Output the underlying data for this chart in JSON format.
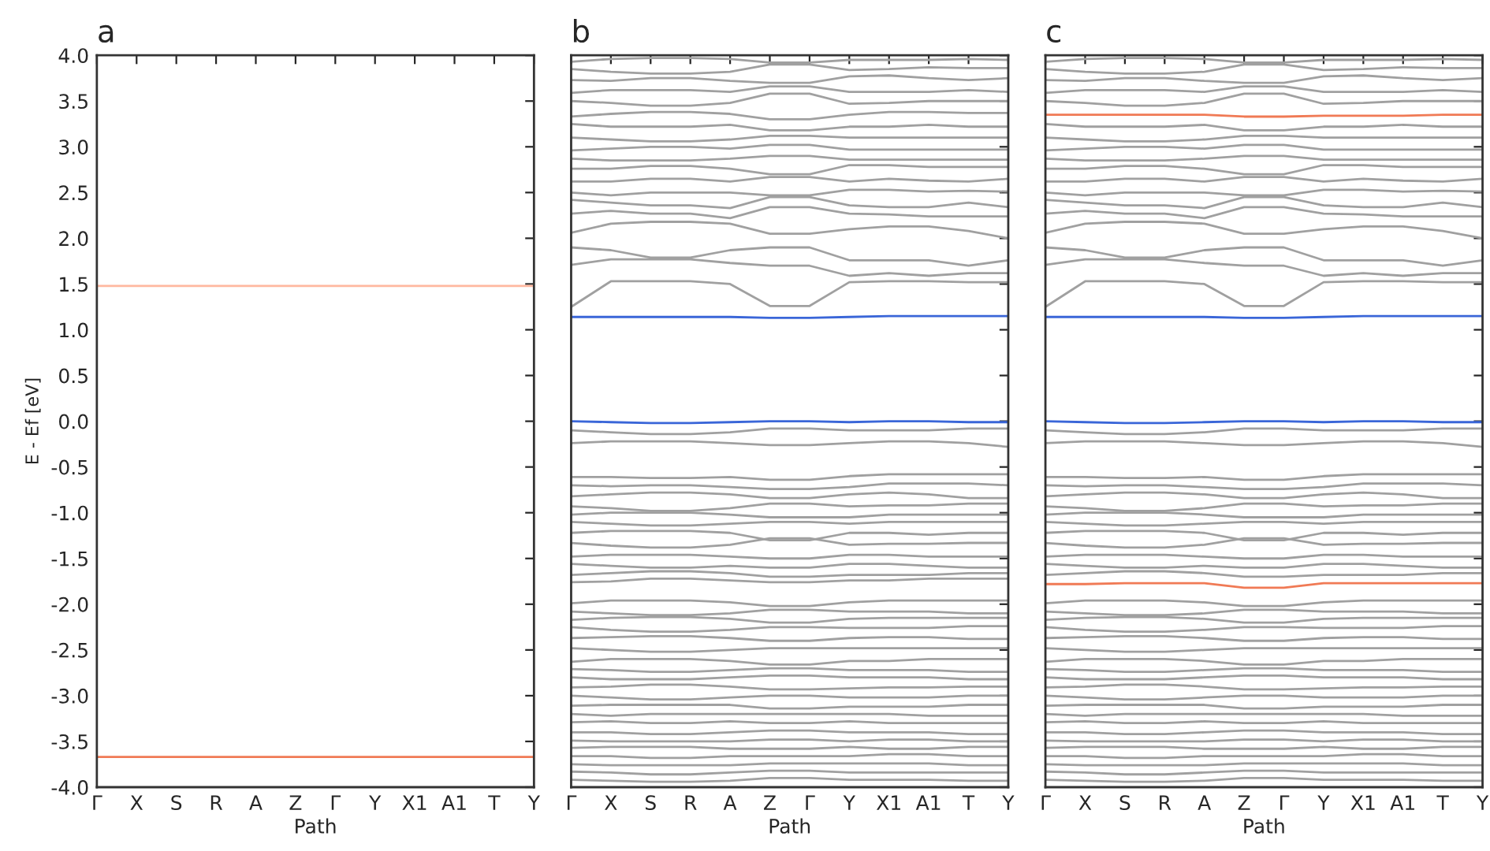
{
  "chart_data": [
    {
      "type": "line",
      "title": "a",
      "xlabel": "Path",
      "ylabel": "E - Ef [eV]",
      "categories": [
        "Γ",
        "X",
        "S",
        "R",
        "A",
        "Z",
        "Γ",
        "Y",
        "X1",
        "A1",
        "T",
        "Y"
      ],
      "ylim": [
        -4.0,
        4.0
      ],
      "yticks": [
        {
          "value": -4,
          "label": "-4.0"
        },
        -3.5,
        {
          "value": -3,
          "label": "-3.0"
        },
        -2.5,
        {
          "value": -2,
          "label": "-2.0"
        },
        -1.5,
        {
          "value": -1,
          "label": "-1.0"
        },
        -0.5,
        {
          "value": 0,
          "label": "0.0"
        },
        0.5,
        {
          "value": 1,
          "label": "1.0"
        },
        1.5,
        {
          "value": 2,
          "label": "2.0"
        },
        2.5,
        {
          "value": 3,
          "label": "3.0"
        },
        3.5,
        {
          "value": 4,
          "label": "4.0"
        }
      ],
      "grid": false,
      "marker": "none",
      "line_style": "solid",
      "series": [
        {
          "color": "#ffb8a0",
          "values": [
            1.48,
            1.48,
            1.48,
            1.48,
            1.48,
            1.48,
            1.48,
            1.48,
            1.48,
            1.48,
            1.48,
            1.48
          ]
        },
        {
          "color": "#f07a55",
          "values": [
            -3.67,
            -3.67,
            -3.67,
            -3.67,
            -3.67,
            -3.67,
            -3.67,
            -3.67,
            -3.67,
            -3.67,
            -3.67,
            -3.67
          ]
        }
      ]
    },
    {
      "type": "line",
      "title": "b",
      "xlabel": "Path",
      "categories": [
        "Γ",
        "X",
        "S",
        "R",
        "A",
        "Z",
        "Γ",
        "Y",
        "X1",
        "A1",
        "T",
        "Y"
      ],
      "ylim": [
        -4.0,
        4.0
      ],
      "yticks": [
        -4,
        -3.5,
        -3,
        -2.5,
        -2,
        -1.5,
        -1,
        -0.5,
        0,
        0.5,
        1,
        1.5,
        2,
        2.5,
        3,
        3.5,
        4
      ],
      "tick_labels": "x",
      "grid": false,
      "marker": "none",
      "line_style": "solid",
      "series": [
        {
          "color": "#a0a0a0",
          "values": [
            1.25,
            1.53,
            1.53,
            1.53,
            1.5,
            1.26,
            1.26,
            1.52,
            1.53,
            1.53,
            1.52,
            1.52
          ]
        },
        {
          "color": "#a0a0a0",
          "values": [
            1.71,
            1.77,
            1.77,
            1.77,
            1.73,
            1.7,
            1.7,
            1.59,
            1.62,
            1.59,
            1.62,
            1.62
          ]
        },
        {
          "color": "#a0a0a0",
          "values": [
            1.9,
            1.87,
            1.79,
            1.79,
            1.87,
            1.9,
            1.9,
            1.76,
            1.76,
            1.76,
            1.7,
            1.76
          ]
        },
        {
          "color": "#a0a0a0",
          "values": [
            2.06,
            2.16,
            2.18,
            2.18,
            2.16,
            2.05,
            2.05,
            2.1,
            2.13,
            2.13,
            2.08,
            2.0
          ]
        },
        {
          "color": "#a0a0a0",
          "values": [
            2.27,
            2.3,
            2.27,
            2.27,
            2.22,
            2.34,
            2.34,
            2.27,
            2.26,
            2.24,
            2.24,
            2.24
          ]
        },
        {
          "color": "#a0a0a0",
          "values": [
            2.42,
            2.39,
            2.36,
            2.36,
            2.33,
            2.45,
            2.45,
            2.36,
            2.34,
            2.34,
            2.39,
            2.34
          ]
        },
        {
          "color": "#a0a0a0",
          "values": [
            2.5,
            2.47,
            2.5,
            2.5,
            2.5,
            2.47,
            2.47,
            2.53,
            2.53,
            2.51,
            2.52,
            2.51
          ]
        },
        {
          "color": "#a0a0a0",
          "values": [
            2.62,
            2.62,
            2.65,
            2.65,
            2.62,
            2.67,
            2.67,
            2.62,
            2.65,
            2.63,
            2.62,
            2.65
          ]
        },
        {
          "color": "#a0a0a0",
          "values": [
            2.76,
            2.76,
            2.79,
            2.79,
            2.76,
            2.7,
            2.7,
            2.8,
            2.8,
            2.78,
            2.78,
            2.78
          ]
        },
        {
          "color": "#a0a0a0",
          "values": [
            2.87,
            2.85,
            2.85,
            2.85,
            2.87,
            2.9,
            2.9,
            2.86,
            2.86,
            2.86,
            2.86,
            2.86
          ]
        },
        {
          "color": "#a0a0a0",
          "values": [
            2.96,
            2.98,
            3.0,
            3.0,
            2.98,
            3.02,
            3.02,
            2.97,
            2.97,
            2.97,
            2.97,
            2.97
          ]
        },
        {
          "color": "#a0a0a0",
          "values": [
            3.1,
            3.08,
            3.06,
            3.06,
            3.08,
            3.12,
            3.12,
            3.1,
            3.1,
            3.1,
            3.1,
            3.1
          ]
        },
        {
          "color": "#a0a0a0",
          "values": [
            3.25,
            3.22,
            3.22,
            3.22,
            3.24,
            3.18,
            3.18,
            3.22,
            3.22,
            3.24,
            3.22,
            3.22
          ]
        },
        {
          "color": "#a0a0a0",
          "values": [
            3.33,
            3.36,
            3.38,
            3.38,
            3.36,
            3.3,
            3.3,
            3.35,
            3.38,
            3.38,
            3.37,
            3.37
          ]
        },
        {
          "color": "#a0a0a0",
          "values": [
            3.5,
            3.48,
            3.45,
            3.45,
            3.48,
            3.58,
            3.58,
            3.47,
            3.48,
            3.5,
            3.5,
            3.5
          ]
        },
        {
          "color": "#a0a0a0",
          "values": [
            3.59,
            3.62,
            3.62,
            3.62,
            3.6,
            3.66,
            3.66,
            3.6,
            3.6,
            3.6,
            3.62,
            3.6
          ]
        },
        {
          "color": "#a0a0a0",
          "values": [
            3.73,
            3.72,
            3.75,
            3.75,
            3.72,
            3.7,
            3.7,
            3.77,
            3.78,
            3.75,
            3.73,
            3.75
          ]
        },
        {
          "color": "#a0a0a0",
          "values": [
            3.85,
            3.82,
            3.8,
            3.8,
            3.82,
            3.9,
            3.9,
            3.84,
            3.85,
            3.87,
            3.86,
            3.86
          ]
        },
        {
          "color": "#a0a0a0",
          "values": [
            3.93,
            3.96,
            3.97,
            3.97,
            3.96,
            3.92,
            3.92,
            3.95,
            3.95,
            3.95,
            3.96,
            3.95
          ]
        },
        {
          "color": "#a0a0a0",
          "values": [
            -0.1,
            -0.12,
            -0.14,
            -0.14,
            -0.12,
            -0.08,
            -0.08,
            -0.1,
            -0.1,
            -0.1,
            -0.08,
            -0.08
          ]
        },
        {
          "color": "#a0a0a0",
          "values": [
            -0.24,
            -0.22,
            -0.22,
            -0.22,
            -0.24,
            -0.26,
            -0.26,
            -0.24,
            -0.22,
            -0.22,
            -0.24,
            -0.28
          ]
        },
        {
          "color": "#a0a0a0",
          "values": [
            -0.61,
            -0.61,
            -0.62,
            -0.62,
            -0.61,
            -0.64,
            -0.64,
            -0.6,
            -0.58,
            -0.58,
            -0.58,
            -0.58
          ]
        },
        {
          "color": "#a0a0a0",
          "values": [
            -0.7,
            -0.71,
            -0.7,
            -0.7,
            -0.72,
            -0.74,
            -0.74,
            -0.72,
            -0.68,
            -0.68,
            -0.68,
            -0.7
          ]
        },
        {
          "color": "#a0a0a0",
          "values": [
            -0.82,
            -0.8,
            -0.78,
            -0.78,
            -0.8,
            -0.84,
            -0.84,
            -0.8,
            -0.78,
            -0.8,
            -0.84,
            -0.84
          ]
        },
        {
          "color": "#a0a0a0",
          "values": [
            -0.93,
            -0.95,
            -0.98,
            -0.98,
            -0.95,
            -0.9,
            -0.9,
            -0.93,
            -0.92,
            -0.92,
            -0.9,
            -0.9
          ]
        },
        {
          "color": "#a0a0a0",
          "values": [
            -1.02,
            -1.0,
            -1.0,
            -1.0,
            -1.02,
            -1.05,
            -1.05,
            -1.05,
            -1.02,
            -1.02,
            -1.02,
            -1.02
          ]
        },
        {
          "color": "#a0a0a0",
          "values": [
            -1.1,
            -1.12,
            -1.14,
            -1.14,
            -1.12,
            -1.1,
            -1.1,
            -1.12,
            -1.1,
            -1.1,
            -1.1,
            -1.1
          ]
        },
        {
          "color": "#a0a0a0",
          "values": [
            -1.22,
            -1.2,
            -1.2,
            -1.2,
            -1.22,
            -1.3,
            -1.3,
            -1.22,
            -1.22,
            -1.24,
            -1.22,
            -1.22
          ]
        },
        {
          "color": "#a0a0a0",
          "values": [
            -1.33,
            -1.36,
            -1.38,
            -1.38,
            -1.35,
            -1.28,
            -1.28,
            -1.35,
            -1.34,
            -1.34,
            -1.33,
            -1.33
          ]
        },
        {
          "color": "#a0a0a0",
          "values": [
            -1.48,
            -1.46,
            -1.46,
            -1.46,
            -1.48,
            -1.5,
            -1.5,
            -1.46,
            -1.46,
            -1.48,
            -1.48,
            -1.48
          ]
        },
        {
          "color": "#a0a0a0",
          "values": [
            -1.56,
            -1.58,
            -1.6,
            -1.6,
            -1.58,
            -1.6,
            -1.6,
            -1.56,
            -1.56,
            -1.58,
            -1.6,
            -1.6
          ]
        },
        {
          "color": "#a0a0a0",
          "values": [
            -1.68,
            -1.66,
            -1.64,
            -1.64,
            -1.66,
            -1.7,
            -1.7,
            -1.68,
            -1.68,
            -1.68,
            -1.66,
            -1.66
          ]
        },
        {
          "color": "#a0a0a0",
          "values": [
            -1.76,
            -1.75,
            -1.72,
            -1.72,
            -1.74,
            -1.76,
            -1.76,
            -1.74,
            -1.74,
            -1.72,
            -1.72,
            -1.72
          ]
        },
        {
          "color": "#a0a0a0",
          "values": [
            -1.99,
            -1.96,
            -1.96,
            -1.96,
            -1.98,
            -2.02,
            -2.02,
            -1.98,
            -1.96,
            -1.96,
            -1.96,
            -1.96
          ]
        },
        {
          "color": "#a0a0a0",
          "values": [
            -2.08,
            -2.1,
            -2.12,
            -2.12,
            -2.1,
            -2.06,
            -2.06,
            -2.08,
            -2.08,
            -2.08,
            -2.1,
            -2.1
          ]
        },
        {
          "color": "#a0a0a0",
          "values": [
            -2.17,
            -2.15,
            -2.14,
            -2.14,
            -2.16,
            -2.2,
            -2.2,
            -2.16,
            -2.15,
            -2.15,
            -2.15,
            -2.15
          ]
        },
        {
          "color": "#a0a0a0",
          "values": [
            -2.25,
            -2.28,
            -2.3,
            -2.3,
            -2.28,
            -2.25,
            -2.25,
            -2.26,
            -2.26,
            -2.26,
            -2.24,
            -2.24
          ]
        },
        {
          "color": "#a0a0a0",
          "values": [
            -2.37,
            -2.36,
            -2.35,
            -2.35,
            -2.37,
            -2.4,
            -2.4,
            -2.37,
            -2.36,
            -2.36,
            -2.38,
            -2.38
          ]
        },
        {
          "color": "#a0a0a0",
          "values": [
            -2.48,
            -2.5,
            -2.52,
            -2.52,
            -2.5,
            -2.48,
            -2.48,
            -2.48,
            -2.48,
            -2.48,
            -2.48,
            -2.48
          ]
        },
        {
          "color": "#a0a0a0",
          "values": [
            -2.63,
            -2.6,
            -2.6,
            -2.6,
            -2.62,
            -2.66,
            -2.66,
            -2.62,
            -2.62,
            -2.6,
            -2.6,
            -2.6
          ]
        },
        {
          "color": "#a0a0a0",
          "values": [
            -2.71,
            -2.72,
            -2.74,
            -2.74,
            -2.72,
            -2.7,
            -2.7,
            -2.72,
            -2.72,
            -2.72,
            -2.74,
            -2.74
          ]
        },
        {
          "color": "#a0a0a0",
          "values": [
            -2.8,
            -2.82,
            -2.82,
            -2.82,
            -2.8,
            -2.78,
            -2.78,
            -2.8,
            -2.8,
            -2.8,
            -2.82,
            -2.82
          ]
        },
        {
          "color": "#a0a0a0",
          "values": [
            -2.91,
            -2.9,
            -2.88,
            -2.88,
            -2.9,
            -2.93,
            -2.93,
            -2.92,
            -2.91,
            -2.91,
            -2.9,
            -2.9
          ]
        },
        {
          "color": "#a0a0a0",
          "values": [
            -3.0,
            -3.02,
            -3.04,
            -3.04,
            -3.02,
            -3.0,
            -3.0,
            -3.02,
            -3.02,
            -3.02,
            -3.0,
            -3.0
          ]
        },
        {
          "color": "#a0a0a0",
          "values": [
            -3.11,
            -3.1,
            -3.1,
            -3.1,
            -3.1,
            -3.14,
            -3.14,
            -3.12,
            -3.12,
            -3.12,
            -3.1,
            -3.1
          ]
        },
        {
          "color": "#a0a0a0",
          "values": [
            -3.2,
            -3.22,
            -3.2,
            -3.2,
            -3.2,
            -3.2,
            -3.2,
            -3.2,
            -3.2,
            -3.22,
            -3.22,
            -3.22
          ]
        },
        {
          "color": "#a0a0a0",
          "values": [
            -3.29,
            -3.28,
            -3.3,
            -3.3,
            -3.28,
            -3.3,
            -3.3,
            -3.28,
            -3.3,
            -3.3,
            -3.3,
            -3.3
          ]
        },
        {
          "color": "#a0a0a0",
          "values": [
            -3.4,
            -3.4,
            -3.42,
            -3.42,
            -3.4,
            -3.38,
            -3.38,
            -3.4,
            -3.4,
            -3.4,
            -3.42,
            -3.42
          ]
        },
        {
          "color": "#a0a0a0",
          "values": [
            -3.49,
            -3.5,
            -3.5,
            -3.5,
            -3.5,
            -3.48,
            -3.48,
            -3.5,
            -3.48,
            -3.48,
            -3.5,
            -3.5
          ]
        },
        {
          "color": "#a0a0a0",
          "values": [
            -3.57,
            -3.56,
            -3.56,
            -3.56,
            -3.58,
            -3.58,
            -3.58,
            -3.56,
            -3.58,
            -3.58,
            -3.56,
            -3.56
          ]
        },
        {
          "color": "#a0a0a0",
          "values": [
            -3.66,
            -3.66,
            -3.68,
            -3.68,
            -3.66,
            -3.66,
            -3.66,
            -3.66,
            -3.64,
            -3.64,
            -3.66,
            -3.66
          ]
        },
        {
          "color": "#a0a0a0",
          "values": [
            -3.75,
            -3.76,
            -3.76,
            -3.76,
            -3.76,
            -3.74,
            -3.74,
            -3.74,
            -3.74,
            -3.74,
            -3.76,
            -3.76
          ]
        },
        {
          "color": "#a0a0a0",
          "values": [
            -3.83,
            -3.84,
            -3.86,
            -3.86,
            -3.84,
            -3.82,
            -3.82,
            -3.84,
            -3.84,
            -3.84,
            -3.84,
            -3.84
          ]
        },
        {
          "color": "#a0a0a0",
          "values": [
            -3.92,
            -3.93,
            -3.94,
            -3.94,
            -3.93,
            -3.9,
            -3.9,
            -3.92,
            -3.92,
            -3.92,
            -3.93,
            -3.93
          ]
        },
        {
          "color": "#3a66d8",
          "values": [
            1.14,
            1.14,
            1.14,
            1.14,
            1.14,
            1.13,
            1.13,
            1.14,
            1.15,
            1.15,
            1.15,
            1.15
          ]
        },
        {
          "color": "#3a66d8",
          "values": [
            0.0,
            -0.01,
            -0.02,
            -0.02,
            -0.01,
            0.0,
            0.0,
            -0.01,
            0.0,
            0.0,
            -0.01,
            -0.01
          ]
        }
      ]
    },
    {
      "type": "line",
      "title": "c",
      "xlabel": "Path",
      "categories": [
        "Γ",
        "X",
        "S",
        "R",
        "A",
        "Z",
        "Γ",
        "Y",
        "X1",
        "A1",
        "T",
        "Y"
      ],
      "ylim": [
        -4.0,
        4.0
      ],
      "yticks": [
        -4,
        -3.5,
        -3,
        -2.5,
        -2,
        -1.5,
        -1,
        -0.5,
        0,
        0.5,
        1,
        1.5,
        2,
        2.5,
        3,
        3.5,
        4
      ],
      "tick_labels": "x",
      "grid": false,
      "marker": "none",
      "line_style": "solid",
      "series": [
        {
          "color": "#a0a0a0",
          "values": [
            1.25,
            1.53,
            1.53,
            1.53,
            1.5,
            1.26,
            1.26,
            1.52,
            1.53,
            1.53,
            1.52,
            1.52
          ]
        },
        {
          "color": "#a0a0a0",
          "values": [
            1.71,
            1.77,
            1.77,
            1.77,
            1.73,
            1.7,
            1.7,
            1.59,
            1.62,
            1.59,
            1.62,
            1.62
          ]
        },
        {
          "color": "#a0a0a0",
          "values": [
            1.9,
            1.87,
            1.79,
            1.79,
            1.87,
            1.9,
            1.9,
            1.76,
            1.76,
            1.76,
            1.7,
            1.76
          ]
        },
        {
          "color": "#a0a0a0",
          "values": [
            2.06,
            2.16,
            2.18,
            2.18,
            2.16,
            2.05,
            2.05,
            2.1,
            2.13,
            2.13,
            2.08,
            2.0
          ]
        },
        {
          "color": "#a0a0a0",
          "values": [
            2.27,
            2.3,
            2.27,
            2.27,
            2.22,
            2.34,
            2.34,
            2.27,
            2.26,
            2.24,
            2.24,
            2.24
          ]
        },
        {
          "color": "#a0a0a0",
          "values": [
            2.42,
            2.39,
            2.36,
            2.36,
            2.33,
            2.45,
            2.45,
            2.36,
            2.34,
            2.34,
            2.39,
            2.34
          ]
        },
        {
          "color": "#a0a0a0",
          "values": [
            2.5,
            2.47,
            2.5,
            2.5,
            2.5,
            2.47,
            2.47,
            2.53,
            2.53,
            2.51,
            2.52,
            2.51
          ]
        },
        {
          "color": "#a0a0a0",
          "values": [
            2.62,
            2.62,
            2.65,
            2.65,
            2.62,
            2.67,
            2.67,
            2.62,
            2.65,
            2.63,
            2.62,
            2.65
          ]
        },
        {
          "color": "#a0a0a0",
          "values": [
            2.76,
            2.76,
            2.79,
            2.79,
            2.76,
            2.7,
            2.7,
            2.8,
            2.8,
            2.78,
            2.78,
            2.78
          ]
        },
        {
          "color": "#a0a0a0",
          "values": [
            2.87,
            2.85,
            2.85,
            2.85,
            2.87,
            2.9,
            2.9,
            2.86,
            2.86,
            2.86,
            2.86,
            2.86
          ]
        },
        {
          "color": "#a0a0a0",
          "values": [
            2.96,
            2.98,
            3.0,
            3.0,
            2.98,
            3.02,
            3.02,
            2.97,
            2.97,
            2.97,
            2.97,
            2.97
          ]
        },
        {
          "color": "#a0a0a0",
          "values": [
            3.1,
            3.08,
            3.06,
            3.06,
            3.08,
            3.12,
            3.12,
            3.1,
            3.1,
            3.1,
            3.1,
            3.1
          ]
        },
        {
          "color": "#a0a0a0",
          "values": [
            3.25,
            3.22,
            3.22,
            3.22,
            3.24,
            3.18,
            3.18,
            3.22,
            3.22,
            3.24,
            3.22,
            3.22
          ]
        },
        {
          "color": "#a0a0a0",
          "values": [
            3.5,
            3.48,
            3.45,
            3.45,
            3.48,
            3.58,
            3.58,
            3.47,
            3.48,
            3.5,
            3.5,
            3.5
          ]
        },
        {
          "color": "#a0a0a0",
          "values": [
            3.59,
            3.62,
            3.62,
            3.62,
            3.6,
            3.66,
            3.66,
            3.6,
            3.6,
            3.6,
            3.62,
            3.6
          ]
        },
        {
          "color": "#a0a0a0",
          "values": [
            3.73,
            3.72,
            3.75,
            3.75,
            3.72,
            3.7,
            3.7,
            3.77,
            3.78,
            3.75,
            3.73,
            3.75
          ]
        },
        {
          "color": "#a0a0a0",
          "values": [
            3.85,
            3.82,
            3.8,
            3.8,
            3.82,
            3.9,
            3.9,
            3.84,
            3.85,
            3.87,
            3.86,
            3.86
          ]
        },
        {
          "color": "#a0a0a0",
          "values": [
            3.93,
            3.96,
            3.97,
            3.97,
            3.96,
            3.92,
            3.92,
            3.95,
            3.95,
            3.95,
            3.96,
            3.95
          ]
        },
        {
          "color": "#a0a0a0",
          "values": [
            -0.1,
            -0.12,
            -0.14,
            -0.14,
            -0.12,
            -0.08,
            -0.08,
            -0.1,
            -0.1,
            -0.1,
            -0.08,
            -0.08
          ]
        },
        {
          "color": "#a0a0a0",
          "values": [
            -0.24,
            -0.22,
            -0.22,
            -0.22,
            -0.24,
            -0.26,
            -0.26,
            -0.24,
            -0.22,
            -0.22,
            -0.24,
            -0.28
          ]
        },
        {
          "color": "#a0a0a0",
          "values": [
            -0.61,
            -0.61,
            -0.62,
            -0.62,
            -0.61,
            -0.64,
            -0.64,
            -0.6,
            -0.58,
            -0.58,
            -0.58,
            -0.58
          ]
        },
        {
          "color": "#a0a0a0",
          "values": [
            -0.7,
            -0.71,
            -0.7,
            -0.7,
            -0.72,
            -0.74,
            -0.74,
            -0.72,
            -0.68,
            -0.68,
            -0.68,
            -0.7
          ]
        },
        {
          "color": "#a0a0a0",
          "values": [
            -0.82,
            -0.8,
            -0.78,
            -0.78,
            -0.8,
            -0.84,
            -0.84,
            -0.8,
            -0.78,
            -0.8,
            -0.84,
            -0.84
          ]
        },
        {
          "color": "#a0a0a0",
          "values": [
            -0.93,
            -0.95,
            -0.98,
            -0.98,
            -0.95,
            -0.9,
            -0.9,
            -0.93,
            -0.92,
            -0.92,
            -0.9,
            -0.9
          ]
        },
        {
          "color": "#a0a0a0",
          "values": [
            -1.02,
            -1.0,
            -1.0,
            -1.0,
            -1.02,
            -1.05,
            -1.05,
            -1.05,
            -1.02,
            -1.02,
            -1.02,
            -1.02
          ]
        },
        {
          "color": "#a0a0a0",
          "values": [
            -1.1,
            -1.12,
            -1.14,
            -1.14,
            -1.12,
            -1.1,
            -1.1,
            -1.12,
            -1.1,
            -1.1,
            -1.1,
            -1.1
          ]
        },
        {
          "color": "#a0a0a0",
          "values": [
            -1.22,
            -1.2,
            -1.2,
            -1.2,
            -1.22,
            -1.3,
            -1.3,
            -1.22,
            -1.22,
            -1.24,
            -1.22,
            -1.22
          ]
        },
        {
          "color": "#a0a0a0",
          "values": [
            -1.33,
            -1.36,
            -1.38,
            -1.38,
            -1.35,
            -1.28,
            -1.28,
            -1.35,
            -1.34,
            -1.34,
            -1.33,
            -1.33
          ]
        },
        {
          "color": "#a0a0a0",
          "values": [
            -1.48,
            -1.46,
            -1.46,
            -1.46,
            -1.48,
            -1.5,
            -1.5,
            -1.46,
            -1.46,
            -1.48,
            -1.48,
            -1.48
          ]
        },
        {
          "color": "#a0a0a0",
          "values": [
            -1.56,
            -1.58,
            -1.6,
            -1.6,
            -1.58,
            -1.6,
            -1.6,
            -1.56,
            -1.56,
            -1.58,
            -1.6,
            -1.6
          ]
        },
        {
          "color": "#a0a0a0",
          "values": [
            -1.68,
            -1.66,
            -1.64,
            -1.64,
            -1.66,
            -1.7,
            -1.7,
            -1.68,
            -1.68,
            -1.68,
            -1.66,
            -1.66
          ]
        },
        {
          "color": "#a0a0a0",
          "values": [
            -1.99,
            -1.96,
            -1.96,
            -1.96,
            -1.98,
            -2.02,
            -2.02,
            -1.98,
            -1.96,
            -1.96,
            -1.96,
            -1.96
          ]
        },
        {
          "color": "#a0a0a0",
          "values": [
            -2.08,
            -2.1,
            -2.12,
            -2.12,
            -2.1,
            -2.06,
            -2.06,
            -2.08,
            -2.08,
            -2.08,
            -2.1,
            -2.1
          ]
        },
        {
          "color": "#a0a0a0",
          "values": [
            -2.17,
            -2.15,
            -2.14,
            -2.14,
            -2.16,
            -2.2,
            -2.2,
            -2.16,
            -2.15,
            -2.15,
            -2.15,
            -2.15
          ]
        },
        {
          "color": "#a0a0a0",
          "values": [
            -2.25,
            -2.28,
            -2.3,
            -2.3,
            -2.28,
            -2.25,
            -2.25,
            -2.26,
            -2.26,
            -2.26,
            -2.24,
            -2.24
          ]
        },
        {
          "color": "#a0a0a0",
          "values": [
            -2.37,
            -2.36,
            -2.35,
            -2.35,
            -2.37,
            -2.4,
            -2.4,
            -2.37,
            -2.36,
            -2.36,
            -2.38,
            -2.38
          ]
        },
        {
          "color": "#a0a0a0",
          "values": [
            -2.48,
            -2.5,
            -2.52,
            -2.52,
            -2.5,
            -2.48,
            -2.48,
            -2.48,
            -2.48,
            -2.48,
            -2.48,
            -2.48
          ]
        },
        {
          "color": "#a0a0a0",
          "values": [
            -2.63,
            -2.6,
            -2.6,
            -2.6,
            -2.62,
            -2.66,
            -2.66,
            -2.62,
            -2.62,
            -2.6,
            -2.6,
            -2.6
          ]
        },
        {
          "color": "#a0a0a0",
          "values": [
            -2.71,
            -2.72,
            -2.74,
            -2.74,
            -2.72,
            -2.7,
            -2.7,
            -2.72,
            -2.72,
            -2.72,
            -2.74,
            -2.74
          ]
        },
        {
          "color": "#a0a0a0",
          "values": [
            -2.8,
            -2.82,
            -2.82,
            -2.82,
            -2.8,
            -2.78,
            -2.78,
            -2.8,
            -2.8,
            -2.8,
            -2.82,
            -2.82
          ]
        },
        {
          "color": "#a0a0a0",
          "values": [
            -2.91,
            -2.9,
            -2.88,
            -2.88,
            -2.9,
            -2.93,
            -2.93,
            -2.92,
            -2.91,
            -2.91,
            -2.9,
            -2.9
          ]
        },
        {
          "color": "#a0a0a0",
          "values": [
            -3.0,
            -3.02,
            -3.04,
            -3.04,
            -3.02,
            -3.0,
            -3.0,
            -3.02,
            -3.02,
            -3.02,
            -3.0,
            -3.0
          ]
        },
        {
          "color": "#a0a0a0",
          "values": [
            -3.11,
            -3.1,
            -3.1,
            -3.1,
            -3.1,
            -3.14,
            -3.14,
            -3.12,
            -3.12,
            -3.12,
            -3.1,
            -3.1
          ]
        },
        {
          "color": "#a0a0a0",
          "values": [
            -3.2,
            -3.22,
            -3.2,
            -3.2,
            -3.2,
            -3.2,
            -3.2,
            -3.2,
            -3.2,
            -3.22,
            -3.22,
            -3.22
          ]
        },
        {
          "color": "#a0a0a0",
          "values": [
            -3.29,
            -3.28,
            -3.3,
            -3.3,
            -3.28,
            -3.3,
            -3.3,
            -3.28,
            -3.3,
            -3.3,
            -3.3,
            -3.3
          ]
        },
        {
          "color": "#a0a0a0",
          "values": [
            -3.4,
            -3.4,
            -3.42,
            -3.42,
            -3.4,
            -3.38,
            -3.38,
            -3.4,
            -3.4,
            -3.4,
            -3.42,
            -3.42
          ]
        },
        {
          "color": "#a0a0a0",
          "values": [
            -3.49,
            -3.5,
            -3.5,
            -3.5,
            -3.5,
            -3.48,
            -3.48,
            -3.5,
            -3.48,
            -3.48,
            -3.5,
            -3.5
          ]
        },
        {
          "color": "#a0a0a0",
          "values": [
            -3.57,
            -3.56,
            -3.56,
            -3.56,
            -3.58,
            -3.58,
            -3.58,
            -3.56,
            -3.58,
            -3.58,
            -3.56,
            -3.56
          ]
        },
        {
          "color": "#a0a0a0",
          "values": [
            -3.66,
            -3.66,
            -3.68,
            -3.68,
            -3.66,
            -3.66,
            -3.66,
            -3.66,
            -3.64,
            -3.64,
            -3.66,
            -3.66
          ]
        },
        {
          "color": "#a0a0a0",
          "values": [
            -3.75,
            -3.76,
            -3.76,
            -3.76,
            -3.76,
            -3.74,
            -3.74,
            -3.74,
            -3.74,
            -3.74,
            -3.76,
            -3.76
          ]
        },
        {
          "color": "#a0a0a0",
          "values": [
            -3.83,
            -3.84,
            -3.86,
            -3.86,
            -3.84,
            -3.82,
            -3.82,
            -3.84,
            -3.84,
            -3.84,
            -3.84,
            -3.84
          ]
        },
        {
          "color": "#a0a0a0",
          "values": [
            -3.92,
            -3.93,
            -3.94,
            -3.94,
            -3.93,
            -3.9,
            -3.9,
            -3.92,
            -3.92,
            -3.92,
            -3.93,
            -3.93
          ]
        },
        {
          "color": "#3a66d8",
          "values": [
            1.14,
            1.14,
            1.14,
            1.14,
            1.14,
            1.13,
            1.13,
            1.14,
            1.15,
            1.15,
            1.15,
            1.15
          ]
        },
        {
          "color": "#3a66d8",
          "values": [
            0.0,
            -0.01,
            -0.02,
            -0.02,
            -0.01,
            0.0,
            0.0,
            -0.01,
            0.0,
            0.0,
            -0.01,
            -0.01
          ]
        },
        {
          "color": "#f07a55",
          "values": [
            3.35,
            3.35,
            3.35,
            3.35,
            3.35,
            3.33,
            3.33,
            3.34,
            3.34,
            3.34,
            3.35,
            3.35
          ]
        },
        {
          "color": "#f07a55",
          "values": [
            -1.78,
            -1.78,
            -1.77,
            -1.77,
            -1.77,
            -1.82,
            -1.82,
            -1.77,
            -1.77,
            -1.77,
            -1.77,
            -1.77
          ]
        }
      ]
    }
  ]
}
